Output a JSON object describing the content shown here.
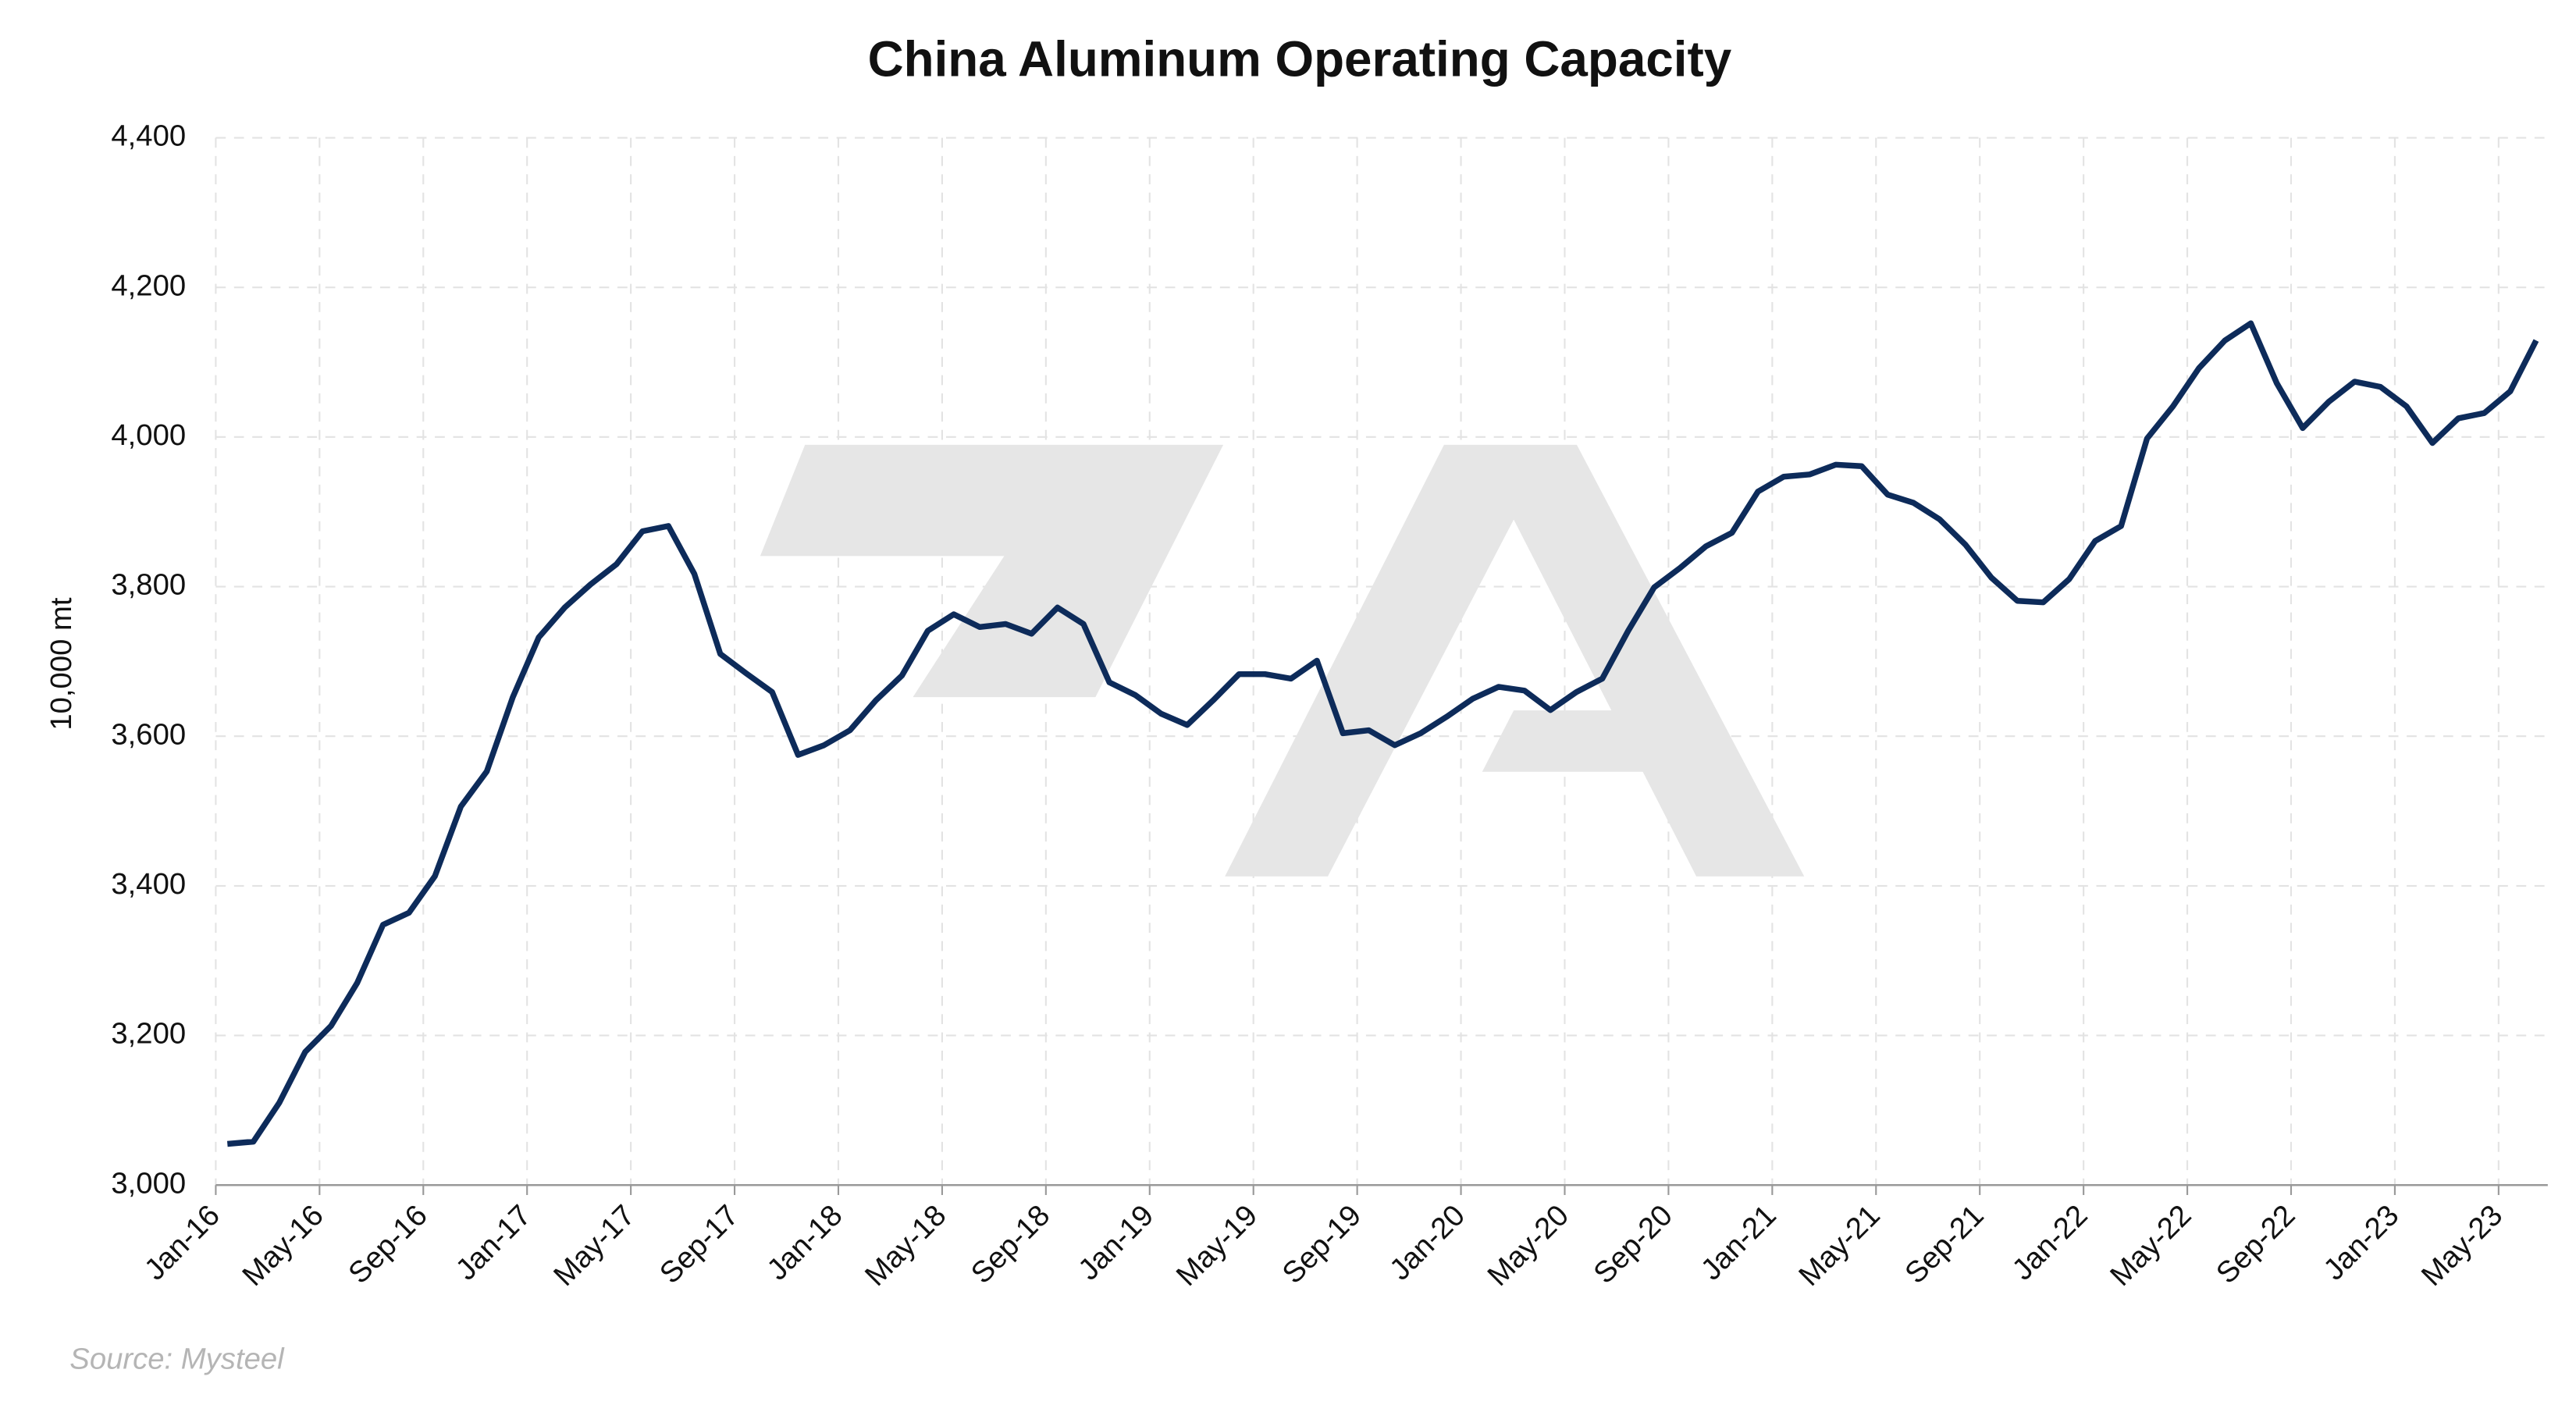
{
  "chart_data": {
    "type": "line",
    "title": "China Aluminum Operating Capacity",
    "y_label": "10,000 mt",
    "source": "Source: Mysteel",
    "categories": [
      "Jan-16",
      null,
      null,
      null,
      "May-16",
      null,
      null,
      null,
      "Sep-16",
      null,
      null,
      null,
      "Jan-17",
      null,
      null,
      null,
      "May-17",
      null,
      null,
      null,
      "Sep-17",
      null,
      null,
      null,
      "Jan-18",
      null,
      null,
      null,
      "May-18",
      null,
      null,
      null,
      "Sep-18",
      null,
      null,
      null,
      "Jan-19",
      null,
      null,
      null,
      "May-19",
      null,
      null,
      null,
      "Sep-19",
      null,
      null,
      null,
      "Jan-20",
      null,
      null,
      null,
      "May-20",
      null,
      null,
      null,
      "Sep-20",
      null,
      null,
      null,
      "Jan-21",
      null,
      null,
      null,
      "May-21",
      null,
      null,
      null,
      "Sep-21",
      null,
      null,
      null,
      "Jan-22",
      null,
      null,
      null,
      "May-22",
      null,
      null,
      null,
      "Sep-22",
      null,
      null,
      null,
      "Jan-23",
      null,
      null,
      null,
      "May-23",
      null
    ],
    "series": [
      {
        "name": "Operating Capacity",
        "color": "#0d2b5a",
        "values": [
          3055,
          3058,
          3110,
          3178,
          3213,
          3270,
          3348,
          3364,
          3413,
          3506,
          3553,
          3652,
          3732,
          3772,
          3803,
          3830,
          3874,
          3881,
          3817,
          3710,
          3684,
          3659,
          3575,
          3588,
          3608,
          3648,
          3681,
          3741,
          3763,
          3746,
          3750,
          3737,
          3772,
          3750,
          3672,
          3655,
          3630,
          3615,
          3648,
          3683,
          3683,
          3677,
          3701,
          3604,
          3608,
          3588,
          3604,
          3626,
          3650,
          3666,
          3661,
          3635,
          3659,
          3677,
          3741,
          3799,
          3825,
          3854,
          3872,
          3927,
          3947,
          3950,
          3963,
          3961,
          3923,
          3912,
          3890,
          3856,
          3812,
          3781,
          3779,
          3810,
          3861,
          3881,
          3998,
          4041,
          4092,
          4129,
          4152,
          4072,
          4012,
          4047,
          4074,
          4067,
          4041,
          3992,
          4025,
          4032,
          4061,
          4129
        ]
      }
    ],
    "ylim": [
      3000,
      4400
    ],
    "yticks": [
      {
        "value": 3000,
        "label": "3,000"
      },
      {
        "value": 3200,
        "label": "3,200"
      },
      {
        "value": 3400,
        "label": "3,400"
      },
      {
        "value": 3600,
        "label": "3,600"
      },
      {
        "value": 3800,
        "label": "3,800"
      },
      {
        "value": 4000,
        "label": "4,000"
      },
      {
        "value": 4200,
        "label": "4,200"
      },
      {
        "value": 4400,
        "label": "4,400"
      }
    ],
    "grid": true
  }
}
